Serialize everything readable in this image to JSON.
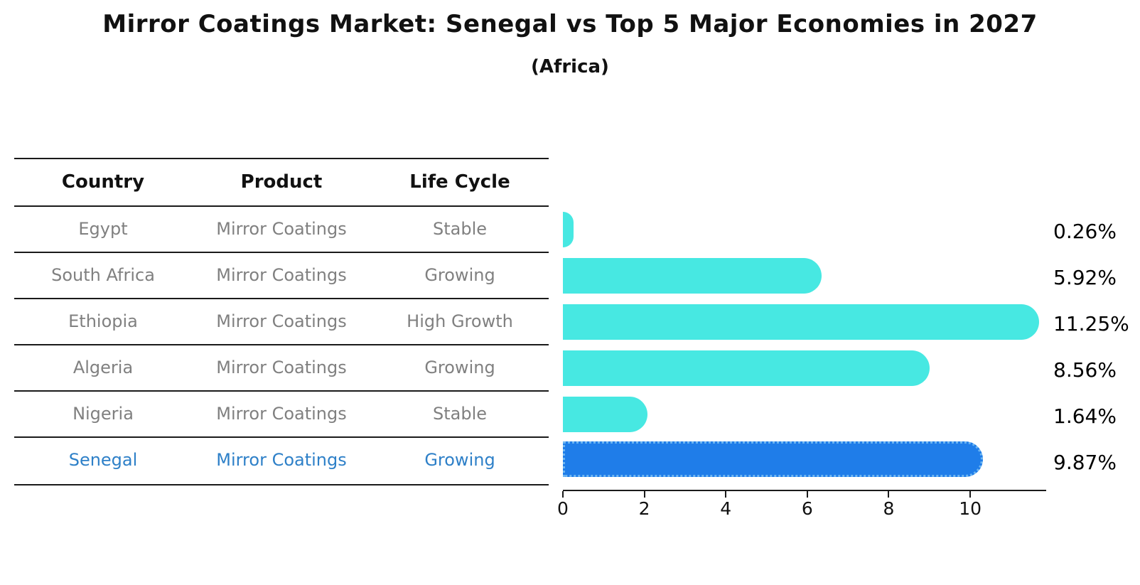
{
  "title": "Mirror Coatings Market: Senegal vs Top 5 Major Economies in 2027",
  "subtitle": "(Africa)",
  "table": {
    "headers": [
      "Country",
      "Product",
      "Life Cycle"
    ],
    "rows": [
      {
        "country": "Egypt",
        "product": "Mirror Coatings",
        "life_cycle": "Stable"
      },
      {
        "country": "South Africa",
        "product": "Mirror Coatings",
        "life_cycle": "Growing"
      },
      {
        "country": "Ethiopia",
        "product": "Mirror Coatings",
        "life_cycle": "High Growth"
      },
      {
        "country": "Algeria",
        "product": "Mirror Coatings",
        "life_cycle": "Growing"
      },
      {
        "country": "Nigeria",
        "product": "Mirror Coatings",
        "life_cycle": "Stable"
      },
      {
        "country": "Senegal",
        "product": "Mirror Coatings",
        "life_cycle": "Growing"
      }
    ]
  },
  "chart_data": {
    "type": "bar",
    "orientation": "horizontal",
    "title": "Mirror Coatings Market: Senegal vs Top 5 Major Economies in 2027",
    "subtitle": "(Africa)",
    "categories": [
      "Egypt",
      "South Africa",
      "Ethiopia",
      "Algeria",
      "Nigeria",
      "Senegal"
    ],
    "values": [
      0.26,
      5.92,
      11.25,
      8.56,
      1.64,
      9.87
    ],
    "value_labels": [
      "0.26%",
      "5.92%",
      "11.25%",
      "8.56%",
      "1.64%",
      "9.87%"
    ],
    "x_ticks": [
      "0",
      "2",
      "4",
      "6",
      "8",
      "10"
    ],
    "x_tick_values": [
      0,
      2,
      4,
      6,
      8,
      10
    ],
    "xlim": [
      0,
      11.83
    ],
    "grid": "off",
    "legend": "none",
    "bar_color": "#47e8e2",
    "highlight_index": 5,
    "highlight_color": "#1f7de9",
    "highlight_border_color": "#6db6f2",
    "highlight_text_color": "#2e80c8"
  }
}
